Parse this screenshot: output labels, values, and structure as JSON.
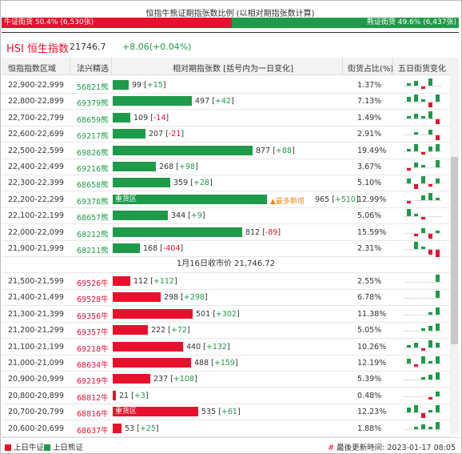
{
  "ratio": {
    "title": "恒指牛熊证期指张数比例 (以相对期指张数计算)",
    "bull_label": "牛证街货 50.4% (6,530张)",
    "bear_label": "熊证街货 49.6% (6,437张)",
    "bull_pct": 50.4,
    "bear_pct": 49.6
  },
  "index": {
    "title": "HSI 恒生指数",
    "value": "21746.7",
    "change": "+8.06(+0.04%)"
  },
  "headers": {
    "range": "恒指指数区域",
    "code": "法兴精选",
    "contracts": "相对期指张数 [括号内为一日变化]",
    "share": "街货占比(%)",
    "trend": "五日街货变化"
  },
  "colors": {
    "bull": "#e8112d",
    "bear": "#1f9a4a",
    "note": "#f0870f"
  },
  "max_contracts": 965,
  "bear_rows": [
    {
      "range": "22,900-22,999",
      "code": "56821熊",
      "value": 99,
      "count": "99",
      "change": "+15",
      "share": "1.37%",
      "trend": [
        1,
        2,
        -1,
        3,
        0
      ]
    },
    {
      "range": "22,800-22,899",
      "code": "69379熊",
      "value": 497,
      "count": "497",
      "change": "+42",
      "share": "7.13%",
      "trend": [
        2,
        3,
        1,
        -2,
        3
      ]
    },
    {
      "range": "22,700-22,799",
      "code": "68659熊",
      "value": 109,
      "count": "109",
      "change": "-14",
      "share": "1.49%",
      "trend": [
        1,
        2,
        1,
        3,
        -2
      ]
    },
    {
      "range": "22,600-22,699",
      "code": "69217熊",
      "value": 207,
      "count": "207",
      "change": "-21",
      "share": "2.91%",
      "trend": [
        0,
        1,
        0,
        2,
        -2
      ]
    },
    {
      "range": "22,500-22,599",
      "code": "69826熊",
      "value": 877,
      "count": "877",
      "change": "+88",
      "share": "19.49%",
      "trend": [
        1,
        3,
        -1,
        2,
        3
      ]
    },
    {
      "range": "22,400-22,499",
      "code": "69216熊",
      "value": 268,
      "count": "268",
      "change": "+98",
      "share": "3.67%",
      "trend": [
        -1,
        2,
        1,
        0,
        3
      ]
    },
    {
      "range": "22,300-22,399",
      "code": "68658熊",
      "value": 359,
      "count": "359",
      "change": "+28",
      "share": "5.10%",
      "trend": [
        2,
        -2,
        3,
        -1,
        2
      ]
    },
    {
      "range": "22,200-22,299",
      "code": "69378熊",
      "value": 965,
      "count": "965",
      "change": "+510",
      "share": "12.99%",
      "trend": [
        -1,
        0,
        2,
        3,
        1
      ],
      "inline": "重货区",
      "note": "▲最多新增"
    },
    {
      "range": "22,100-22,199",
      "code": "68657熊",
      "value": 344,
      "count": "344",
      "change": "+9",
      "share": "5.06%",
      "trend": [
        3,
        1,
        -1,
        0,
        0
      ]
    },
    {
      "range": "22,000-22,099",
      "code": "68212熊",
      "value": 812,
      "count": "812",
      "change": "-89",
      "share": "15.59%",
      "trend": [
        0,
        -1,
        2,
        -2,
        1
      ]
    },
    {
      "range": "21,900-21,999",
      "code": "68211熊",
      "value": 168,
      "count": "168",
      "change": "-404",
      "share": "2.31%",
      "trend": [
        0,
        3,
        1,
        -2,
        -3
      ]
    }
  ],
  "close_label": "1月16日收市价 21,746.72",
  "bull_rows": [
    {
      "range": "21,500-21,599",
      "code": "69526牛",
      "value": 112,
      "count": "112",
      "change": "+112",
      "share": "2.55%",
      "trend": [
        0,
        0,
        0,
        0,
        3
      ]
    },
    {
      "range": "21,400-21,499",
      "code": "69528牛",
      "value": 298,
      "count": "298",
      "change": "+298",
      "share": "6.78%",
      "trend": [
        0,
        0,
        0,
        0,
        3
      ]
    },
    {
      "range": "21,300-21,399",
      "code": "69356牛",
      "value": 501,
      "count": "501",
      "change": "+302",
      "share": "11.38%",
      "trend": [
        0,
        0,
        0,
        1,
        3
      ]
    },
    {
      "range": "21,200-21,299",
      "code": "69357牛",
      "value": 222,
      "count": "222",
      "change": "+72",
      "share": "5.05%",
      "trend": [
        0,
        0,
        1,
        2,
        3
      ]
    },
    {
      "range": "21,100-21,199",
      "code": "69218牛",
      "value": 440,
      "count": "440",
      "change": "+132",
      "share": "10.26%",
      "trend": [
        1,
        2,
        -1,
        3,
        2
      ]
    },
    {
      "range": "21,000-21,099",
      "code": "68634牛",
      "value": 488,
      "count": "488",
      "change": "+159",
      "share": "12.19%",
      "trend": [
        2,
        -1,
        3,
        1,
        3
      ]
    },
    {
      "range": "20,900-20,999",
      "code": "69219牛",
      "value": 237,
      "count": "237",
      "change": "+108",
      "share": "5.39%",
      "trend": [
        0,
        0,
        1,
        2,
        3
      ]
    },
    {
      "range": "20,800-20,899",
      "code": "68812牛",
      "value": 21,
      "count": "21",
      "change": "+3",
      "share": "0.48%",
      "trend": [
        0,
        0,
        0,
        -1,
        2
      ]
    },
    {
      "range": "20,700-20,799",
      "code": "68816牛",
      "value": 535,
      "count": "535",
      "change": "+61",
      "share": "12.23%",
      "trend": [
        2,
        3,
        -2,
        1,
        3
      ],
      "inline": "重货区"
    },
    {
      "range": "20,600-20,699",
      "code": "68637牛",
      "value": 53,
      "count": "53",
      "change": "+25",
      "share": "1.88%",
      "trend": [
        0,
        1,
        2,
        1,
        3
      ]
    }
  ],
  "footer": {
    "legend_bull": "上日牛证",
    "legend_bear": "上日熊证",
    "hash": "#",
    "updated": "最後更新時间: 2023-01-17 08:05"
  }
}
